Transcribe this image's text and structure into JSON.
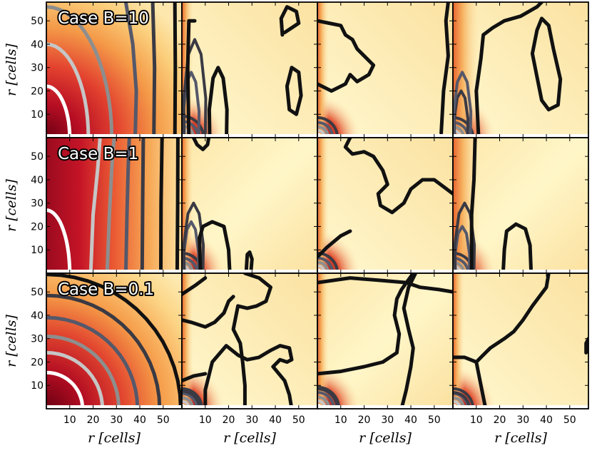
{
  "chart_data": {
    "type": "heatmap",
    "layout": {
      "rows": 3,
      "cols": 4
    },
    "xlabel": "r [cells]",
    "ylabel": "r [cells]",
    "x_ticks": [
      10,
      20,
      30,
      40,
      50
    ],
    "y_ticks": [
      10,
      20,
      30,
      40,
      50
    ],
    "xlim": [
      0,
      58
    ],
    "ylim": [
      0,
      58
    ],
    "row_titles": [
      "Case B=10",
      "Case B=1",
      "Case B=0.1"
    ],
    "colors": {
      "heat_dark": "#6b0012",
      "heat_red": "#c8162a",
      "heat_orange": "#f08a3e",
      "heat_light": "#fde9b0",
      "heat_pale": "#fff8cf",
      "contour_white": "#ffffff",
      "contour_lightgray": "#c6c6c6",
      "contour_gray": "#8e8e8e",
      "contour_slate": "#55586a",
      "contour_dark": "#3a3a44",
      "contour_black": "#111111"
    }
  }
}
